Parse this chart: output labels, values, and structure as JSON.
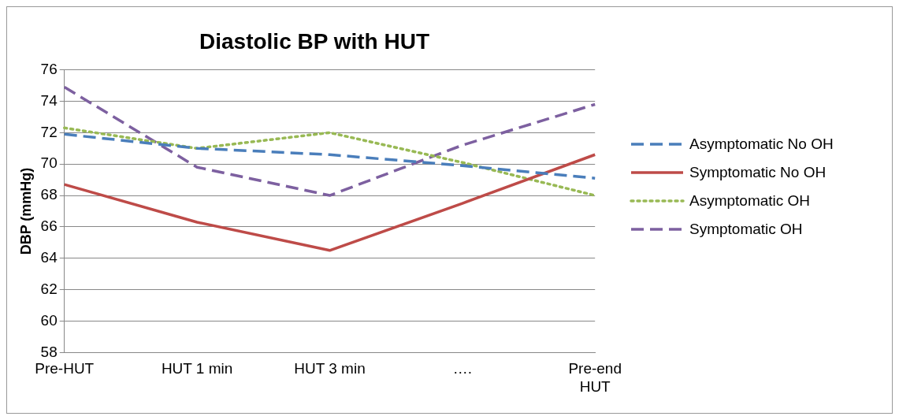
{
  "chart_data": {
    "type": "line",
    "title": "Diastolic BP with HUT",
    "ylabel": "DBP (mmHg)",
    "categories": [
      "Pre-HUT",
      "HUT 1 min",
      "HUT 3 min",
      "….",
      "Pre-end HUT"
    ],
    "series": [
      {
        "name": "Asymptomatic No OH",
        "color": "#4a7ebb",
        "line_style": "dashed",
        "values": [
          71.9,
          71.0,
          70.6,
          69.9,
          69.1
        ]
      },
      {
        "name": "Symptomatic No OH",
        "color": "#be4b48",
        "line_style": "solid",
        "values": [
          68.7,
          66.3,
          64.5,
          67.5,
          70.6
        ]
      },
      {
        "name": "Asymptomatic OH",
        "color": "#98b954",
        "line_style": "dotted",
        "values": [
          72.3,
          71.0,
          72.0,
          70.1,
          68.0
        ]
      },
      {
        "name": "Symptomatic OH",
        "color": "#7d60a0",
        "line_style": "dashed",
        "values": [
          74.9,
          69.8,
          68.0,
          71.2,
          73.8
        ]
      }
    ],
    "ylim": [
      58,
      76
    ],
    "yticks": [
      58,
      60,
      62,
      64,
      66,
      68,
      70,
      72,
      74,
      76
    ],
    "grid": "y",
    "legend": "right",
    "marker": "none"
  }
}
